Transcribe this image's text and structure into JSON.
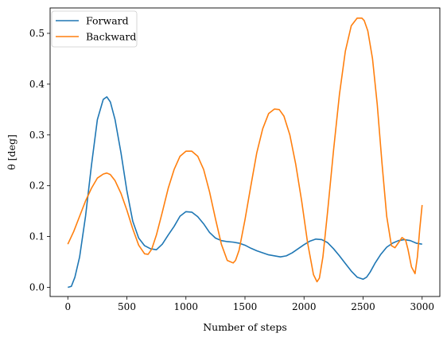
{
  "chart_data": {
    "type": "line",
    "xlabel": "Number of steps",
    "ylabel": "θ [deg]",
    "xlim": [
      -150,
      3150
    ],
    "ylim": [
      -0.018,
      0.55
    ],
    "xticks": [
      "0",
      "500",
      "1000",
      "1500",
      "2000",
      "2500",
      "3000"
    ],
    "yticks": [
      "0.0",
      "0.1",
      "0.2",
      "0.3",
      "0.4",
      "0.5"
    ],
    "legend_position": "top-left",
    "grid": false,
    "series": [
      {
        "name": "Forward",
        "color": "#1f77b4",
        "x": [
          0,
          30,
          60,
          100,
          150,
          200,
          250,
          300,
          330,
          360,
          400,
          450,
          500,
          550,
          600,
          650,
          700,
          750,
          800,
          850,
          900,
          950,
          1000,
          1050,
          1100,
          1150,
          1200,
          1250,
          1300,
          1350,
          1400,
          1450,
          1500,
          1550,
          1600,
          1700,
          1800,
          1850,
          1900,
          1950,
          2000,
          2050,
          2100,
          2150,
          2200,
          2250,
          2300,
          2350,
          2400,
          2450,
          2500,
          2530,
          2560,
          2600,
          2650,
          2700,
          2750,
          2800,
          2850,
          2900,
          2950,
          3000
        ],
        "y": [
          0.0,
          0.002,
          0.02,
          0.06,
          0.14,
          0.24,
          0.33,
          0.37,
          0.375,
          0.365,
          0.33,
          0.265,
          0.19,
          0.13,
          0.097,
          0.082,
          0.076,
          0.074,
          0.085,
          0.103,
          0.12,
          0.14,
          0.149,
          0.148,
          0.139,
          0.125,
          0.108,
          0.097,
          0.092,
          0.09,
          0.089,
          0.087,
          0.083,
          0.077,
          0.072,
          0.064,
          0.06,
          0.062,
          0.068,
          0.076,
          0.084,
          0.091,
          0.095,
          0.094,
          0.088,
          0.076,
          0.062,
          0.047,
          0.032,
          0.02,
          0.016,
          0.02,
          0.03,
          0.047,
          0.065,
          0.079,
          0.087,
          0.092,
          0.094,
          0.092,
          0.087,
          0.085
        ]
      },
      {
        "name": "Backward",
        "color": "#ff7f0e",
        "x": [
          0,
          50,
          100,
          150,
          200,
          250,
          300,
          330,
          360,
          400,
          450,
          500,
          550,
          600,
          650,
          680,
          710,
          750,
          800,
          850,
          900,
          950,
          1000,
          1050,
          1100,
          1150,
          1200,
          1250,
          1300,
          1350,
          1400,
          1420,
          1450,
          1500,
          1550,
          1600,
          1650,
          1700,
          1750,
          1790,
          1830,
          1880,
          1930,
          1980,
          2030,
          2080,
          2110,
          2130,
          2160,
          2200,
          2250,
          2300,
          2350,
          2400,
          2450,
          2490,
          2510,
          2540,
          2580,
          2620,
          2660,
          2700,
          2740,
          2770,
          2800,
          2830,
          2860,
          2880,
          2910,
          2940,
          2960,
          2980,
          3000
        ],
        "y": [
          0.085,
          0.11,
          0.14,
          0.17,
          0.195,
          0.215,
          0.223,
          0.225,
          0.222,
          0.21,
          0.185,
          0.152,
          0.115,
          0.083,
          0.066,
          0.065,
          0.075,
          0.103,
          0.148,
          0.195,
          0.232,
          0.258,
          0.268,
          0.268,
          0.258,
          0.232,
          0.188,
          0.135,
          0.085,
          0.053,
          0.048,
          0.053,
          0.073,
          0.133,
          0.2,
          0.265,
          0.312,
          0.342,
          0.351,
          0.35,
          0.337,
          0.3,
          0.242,
          0.17,
          0.088,
          0.025,
          0.011,
          0.018,
          0.06,
          0.15,
          0.27,
          0.38,
          0.465,
          0.515,
          0.53,
          0.53,
          0.525,
          0.505,
          0.45,
          0.36,
          0.245,
          0.14,
          0.082,
          0.078,
          0.088,
          0.098,
          0.093,
          0.075,
          0.04,
          0.027,
          0.06,
          0.115,
          0.162
        ]
      }
    ]
  }
}
